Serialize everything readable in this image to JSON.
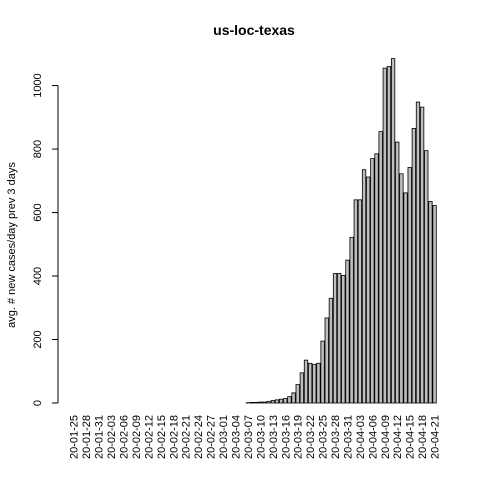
{
  "chart_data": {
    "type": "bar",
    "title": "us-loc-texas",
    "xlabel": "",
    "ylabel": "avg. # new cases/day prev  3  days",
    "ylim": [
      0,
      1090
    ],
    "yticks": [
      0,
      200,
      400,
      600,
      800,
      1000
    ],
    "grid": false,
    "x_tick_labels": [
      "20-01-25",
      "20-01-28",
      "20-01-31",
      "20-02-03",
      "20-02-06",
      "20-02-09",
      "20-02-12",
      "20-02-15",
      "20-02-18",
      "20-02-21",
      "20-02-24",
      "20-02-27",
      "20-03-01",
      "20-03-04",
      "20-03-07",
      "20-03-10",
      "20-03-13",
      "20-03-16",
      "20-03-19",
      "20-03-22",
      "20-03-25",
      "20-03-28",
      "20-03-31",
      "20-04-03",
      "20-04-06",
      "20-04-09",
      "20-04-12",
      "20-04-15",
      "20-04-18",
      "20-04-21"
    ],
    "categories": [
      "20-01-25",
      "20-01-26",
      "20-01-27",
      "20-01-28",
      "20-01-29",
      "20-01-30",
      "20-01-31",
      "20-02-01",
      "20-02-02",
      "20-02-03",
      "20-02-04",
      "20-02-05",
      "20-02-06",
      "20-02-07",
      "20-02-08",
      "20-02-09",
      "20-02-10",
      "20-02-11",
      "20-02-12",
      "20-02-13",
      "20-02-14",
      "20-02-15",
      "20-02-16",
      "20-02-17",
      "20-02-18",
      "20-02-19",
      "20-02-20",
      "20-02-21",
      "20-02-22",
      "20-02-23",
      "20-02-24",
      "20-02-25",
      "20-02-26",
      "20-02-27",
      "20-02-28",
      "20-02-29",
      "20-03-01",
      "20-03-02",
      "20-03-03",
      "20-03-04",
      "20-03-05",
      "20-03-06",
      "20-03-07",
      "20-03-08",
      "20-03-09",
      "20-03-10",
      "20-03-11",
      "20-03-12",
      "20-03-13",
      "20-03-14",
      "20-03-15",
      "20-03-16",
      "20-03-17",
      "20-03-18",
      "20-03-19",
      "20-03-20",
      "20-03-21",
      "20-03-22",
      "20-03-23",
      "20-03-24",
      "20-03-25",
      "20-03-26",
      "20-03-27",
      "20-03-28",
      "20-03-29",
      "20-03-30",
      "20-03-31",
      "20-04-01",
      "20-04-02",
      "20-04-03",
      "20-04-04",
      "20-04-05",
      "20-04-06",
      "20-04-07",
      "20-04-08",
      "20-04-09",
      "20-04-10",
      "20-04-11",
      "20-04-12",
      "20-04-13",
      "20-04-14",
      "20-04-15",
      "20-04-16",
      "20-04-17",
      "20-04-18",
      "20-04-19",
      "20-04-20",
      "20-04-21"
    ],
    "values": [
      0,
      0,
      0,
      0,
      0,
      0,
      0,
      0,
      0,
      0,
      0,
      0,
      0,
      0,
      0,
      0,
      0,
      0,
      0,
      0,
      0,
      0,
      0,
      0,
      0,
      0,
      0,
      0,
      0,
      0,
      0,
      0,
      0,
      0,
      0,
      0,
      0,
      0,
      0,
      0,
      0,
      0,
      1,
      2,
      2,
      3,
      3,
      5,
      8,
      10,
      12,
      14,
      20,
      32,
      58,
      95,
      135,
      125,
      122,
      125,
      195,
      268,
      330,
      408,
      408,
      402,
      450,
      522,
      640,
      640,
      735,
      712,
      770,
      785,
      855,
      1055,
      1060,
      1085,
      822,
      722,
      662,
      742,
      865,
      948,
      932,
      795,
      635,
      622
    ]
  }
}
